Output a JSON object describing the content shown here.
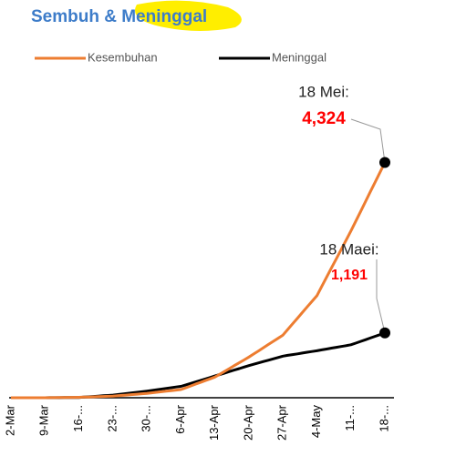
{
  "chart_data": {
    "type": "line",
    "title": "Sembuh & Meninggal",
    "categories": [
      "2-Mar",
      null,
      null,
      null,
      null,
      null,
      null,
      "9-Mar",
      null,
      null,
      null,
      null,
      null,
      null,
      "16-...",
      null,
      null,
      null,
      null,
      null,
      null,
      "23-...",
      null,
      null,
      null,
      null,
      null,
      null,
      "30-...",
      null,
      null,
      null,
      null,
      null,
      null,
      "6-Apr",
      null,
      null,
      null,
      null,
      null,
      null,
      "13-Apr",
      null,
      null,
      null,
      null,
      null,
      null,
      "20-Apr",
      null,
      null,
      null,
      null,
      null,
      null,
      "27-Apr",
      null,
      null,
      null,
      null,
      null,
      null,
      "4-May",
      null,
      null,
      null,
      null,
      null,
      null,
      "11-...",
      null,
      null,
      null,
      null,
      null,
      null,
      "18-..."
    ],
    "series": [
      {
        "name": "Kesembuhan",
        "color": "#ed7d31",
        "values": [
          0,
          0,
          0,
          0,
          0,
          0,
          0,
          0,
          1,
          2,
          3,
          5,
          6,
          7,
          8,
          11,
          14,
          17,
          20,
          23,
          26,
          29,
          36,
          44,
          51,
          59,
          66,
          74,
          81,
          91,
          101,
          111,
          120,
          130,
          140,
          150,
          183,
          216,
          249,
          281,
          314,
          347,
          380,
          432,
          485,
          537,
          590,
          642,
          695,
          747,
          805,
          862,
          920,
          978,
          1035,
          1093,
          1151,
          1255,
          1358,
          1462,
          1565,
          1669,
          1772,
          1876,
          2046,
          2215,
          2385,
          2554,
          2724,
          2893,
          3063,
          3243,
          3423,
          3603,
          3784,
          3964,
          4144,
          4324
        ]
      },
      {
        "name": "Meninggal",
        "color": "#000000",
        "values": [
          0,
          0,
          0,
          0,
          0,
          0,
          0,
          0,
          1,
          1,
          2,
          3,
          4,
          4,
          5,
          11,
          17,
          23,
          30,
          36,
          42,
          48,
          59,
          69,
          80,
          90,
          101,
          111,
          122,
          134,
          147,
          159,
          172,
          184,
          197,
          209,
          236,
          263,
          290,
          318,
          345,
          372,
          399,
          426,
          454,
          481,
          508,
          535,
          563,
          590,
          615,
          640,
          665,
          690,
          715,
          740,
          765,
          779,
          793,
          807,
          822,
          836,
          850,
          864,
          880,
          895,
          911,
          926,
          942,
          957,
          973,
          1004,
          1035,
          1066,
          1098,
          1129,
          1160,
          1191
        ]
      }
    ],
    "annotations": [
      {
        "label": "18 Mei:",
        "value_label": "4,324",
        "series": 0
      },
      {
        "label": "18 Maei:",
        "value_label": "1,191",
        "series": 1
      }
    ],
    "ylim": [
      0,
      4500
    ],
    "legend": "top"
  }
}
